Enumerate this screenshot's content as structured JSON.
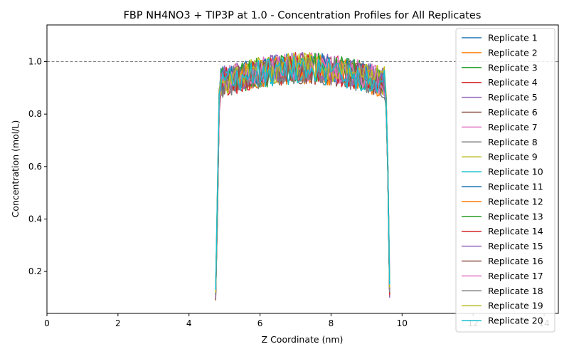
{
  "chart_data": {
    "type": "line",
    "title": "FBP NH4NO3 + TIP3P at 1.0 - Concentration Profiles for All Replicates",
    "xlabel": "Z Coordinate (nm)",
    "ylabel": "Concentration (mol/L)",
    "xlim": [
      0,
      14.4
    ],
    "ylim": [
      0.04,
      1.14
    ],
    "xticks": [
      0,
      2,
      4,
      6,
      8,
      10,
      12,
      14
    ],
    "yticks": [
      0.2,
      0.4,
      0.6,
      0.8,
      1.0
    ],
    "ytick_labels": [
      "0.2",
      "0.4",
      "0.6",
      "0.8",
      "1.0"
    ],
    "reference_line": {
      "y": 1.0,
      "style": "dashed",
      "color": "#808080"
    },
    "grid": false,
    "legend_position": "top-right",
    "x_start": 4.75,
    "x_end": 9.65,
    "x_step": 0.05,
    "series": [
      {
        "name": "Replicate 1",
        "color": "#1f77b4",
        "edge_low": 0.11,
        "edge_high": 0.12,
        "plateau": 0.96,
        "seed": 1
      },
      {
        "name": "Replicate 2",
        "color": "#ff7f0e",
        "edge_low": 0.12,
        "edge_high": 0.13,
        "plateau": 0.95,
        "seed": 2
      },
      {
        "name": "Replicate 3",
        "color": "#2ca02c",
        "edge_low": 0.1,
        "edge_high": 0.14,
        "plateau": 0.95,
        "seed": 3
      },
      {
        "name": "Replicate 4",
        "color": "#d62728",
        "edge_low": 0.11,
        "edge_high": 0.11,
        "plateau": 0.96,
        "seed": 4
      },
      {
        "name": "Replicate 5",
        "color": "#9467bd",
        "edge_low": 0.1,
        "edge_high": 0.1,
        "plateau": 0.96,
        "seed": 5
      },
      {
        "name": "Replicate 6",
        "color": "#8c564b",
        "edge_low": 0.09,
        "edge_high": 0.12,
        "plateau": 0.95,
        "seed": 6
      },
      {
        "name": "Replicate 7",
        "color": "#e377c2",
        "edge_low": 0.12,
        "edge_high": 0.18,
        "plateau": 0.96,
        "seed": 7
      },
      {
        "name": "Replicate 8",
        "color": "#7f7f7f",
        "edge_low": 0.11,
        "edge_high": 0.11,
        "plateau": 0.95,
        "seed": 8
      },
      {
        "name": "Replicate 9",
        "color": "#bcbd22",
        "edge_low": 0.12,
        "edge_high": 0.14,
        "plateau": 0.96,
        "seed": 9
      },
      {
        "name": "Replicate 10",
        "color": "#17becf",
        "edge_low": 0.13,
        "edge_high": 0.15,
        "plateau": 0.95,
        "seed": 10
      },
      {
        "name": "Replicate 11",
        "color": "#1f77b4",
        "edge_low": 0.11,
        "edge_high": 0.12,
        "plateau": 0.96,
        "seed": 11
      },
      {
        "name": "Replicate 12",
        "color": "#ff7f0e",
        "edge_low": 0.1,
        "edge_high": 0.13,
        "plateau": 0.95,
        "seed": 12
      },
      {
        "name": "Replicate 13",
        "color": "#2ca02c",
        "edge_low": 0.11,
        "edge_high": 0.12,
        "plateau": 0.96,
        "seed": 13
      },
      {
        "name": "Replicate 14",
        "color": "#d62728",
        "edge_low": 0.12,
        "edge_high": 0.11,
        "plateau": 0.95,
        "seed": 14
      },
      {
        "name": "Replicate 15",
        "color": "#9467bd",
        "edge_low": 0.1,
        "edge_high": 0.12,
        "plateau": 0.96,
        "seed": 15
      },
      {
        "name": "Replicate 16",
        "color": "#8c564b",
        "edge_low": 0.11,
        "edge_high": 0.13,
        "plateau": 0.95,
        "seed": 16
      },
      {
        "name": "Replicate 17",
        "color": "#e377c2",
        "edge_low": 0.12,
        "edge_high": 0.16,
        "plateau": 0.96,
        "seed": 17
      },
      {
        "name": "Replicate 18",
        "color": "#7f7f7f",
        "edge_low": 0.11,
        "edge_high": 0.12,
        "plateau": 0.95,
        "seed": 18
      },
      {
        "name": "Replicate 19",
        "color": "#bcbd22",
        "edge_low": 0.12,
        "edge_high": 0.14,
        "plateau": 0.96,
        "seed": 19
      },
      {
        "name": "Replicate 20",
        "color": "#17becf",
        "edge_low": 0.13,
        "edge_high": 0.15,
        "plateau": 0.95,
        "seed": 20
      }
    ]
  }
}
